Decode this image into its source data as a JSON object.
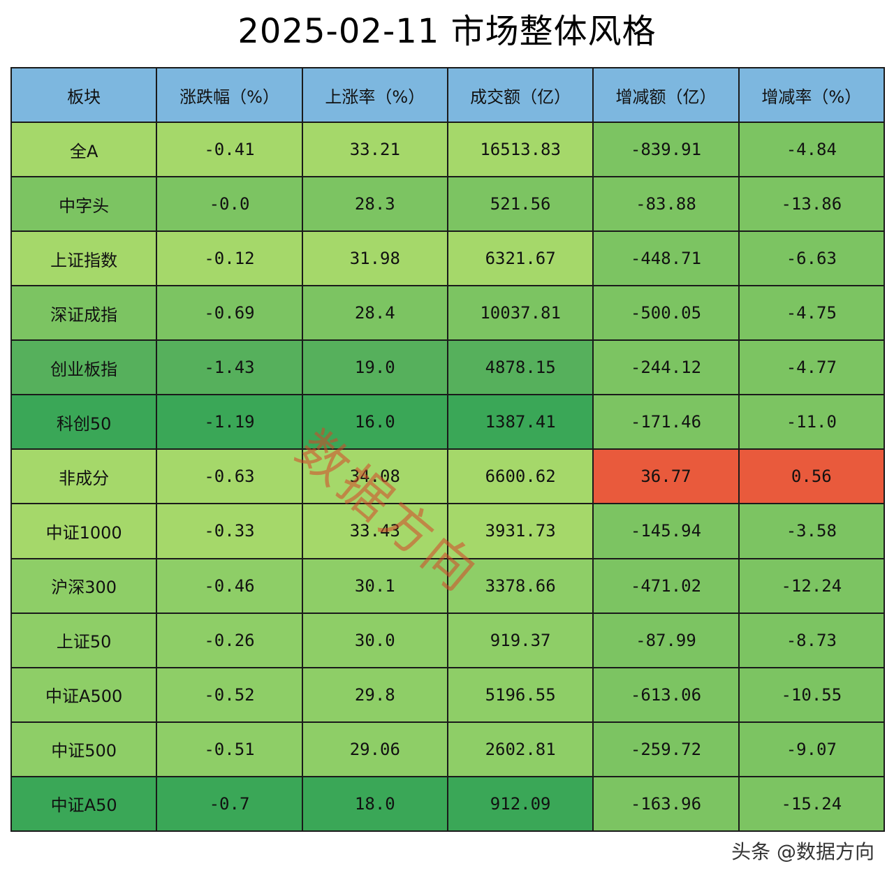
{
  "chart_data": {
    "type": "table",
    "title": "2025-02-11 市场整体风格",
    "columns": [
      "板块",
      "涨跌幅（%）",
      "上涨率（%）",
      "成交额（亿）",
      "增减额（亿）",
      "增减率（%）"
    ],
    "rows": [
      [
        "全A",
        "-0.41",
        "33.21",
        "16513.83",
        "-839.91",
        "-4.84"
      ],
      [
        "中字头",
        "-0.0",
        "28.3",
        "521.56",
        "-83.88",
        "-13.86"
      ],
      [
        "上证指数",
        "-0.12",
        "31.98",
        "6321.67",
        "-448.71",
        "-6.63"
      ],
      [
        "深证成指",
        "-0.69",
        "28.4",
        "10037.81",
        "-500.05",
        "-4.75"
      ],
      [
        "创业板指",
        "-1.43",
        "19.0",
        "4878.15",
        "-244.12",
        "-4.77"
      ],
      [
        "科创50",
        "-1.19",
        "16.0",
        "1387.41",
        "-171.46",
        "-11.0"
      ],
      [
        "非成分",
        "-0.63",
        "34.08",
        "6600.62",
        "36.77",
        "0.56"
      ],
      [
        "中证1000",
        "-0.33",
        "33.43",
        "3931.73",
        "-145.94",
        "-3.58"
      ],
      [
        "沪深300",
        "-0.46",
        "30.1",
        "3378.66",
        "-471.02",
        "-12.24"
      ],
      [
        "上证50",
        "-0.26",
        "30.0",
        "919.37",
        "-87.99",
        "-8.73"
      ],
      [
        "中证A500",
        "-0.52",
        "29.8",
        "5196.55",
        "-613.06",
        "-10.55"
      ],
      [
        "中证500",
        "-0.51",
        "29.06",
        "2602.81",
        "-259.72",
        "-9.07"
      ],
      [
        "中证A50",
        "-0.7",
        "18.0",
        "912.09",
        "-163.96",
        "-15.24"
      ]
    ],
    "cell_colors": [
      [
        "#a5d86a",
        "#a5d86a",
        "#a5d86a",
        "#a5d86a",
        "#7cc462",
        "#7cc462"
      ],
      [
        "#7cc462",
        "#7cc462",
        "#7cc462",
        "#7cc462",
        "#7cc462",
        "#7cc462"
      ],
      [
        "#a5d86a",
        "#a5d86a",
        "#a5d86a",
        "#a5d86a",
        "#7cc462",
        "#7cc462"
      ],
      [
        "#7cc462",
        "#7cc462",
        "#7cc462",
        "#7cc462",
        "#7cc462",
        "#7cc462"
      ],
      [
        "#56b05c",
        "#56b05c",
        "#56b05c",
        "#56b05c",
        "#7cc462",
        "#7cc462"
      ],
      [
        "#3aa757",
        "#3aa757",
        "#3aa757",
        "#3aa757",
        "#7cc462",
        "#7cc462"
      ],
      [
        "#a5d86a",
        "#a5d86a",
        "#a5d86a",
        "#a5d86a",
        "#e95a3c",
        "#e95a3c"
      ],
      [
        "#a5d86a",
        "#a5d86a",
        "#a5d86a",
        "#a5d86a",
        "#7cc462",
        "#7cc462"
      ],
      [
        "#8ece67",
        "#8ece67",
        "#8ece67",
        "#8ece67",
        "#7cc462",
        "#7cc462"
      ],
      [
        "#8ece67",
        "#8ece67",
        "#8ece67",
        "#8ece67",
        "#7cc462",
        "#7cc462"
      ],
      [
        "#8ece67",
        "#8ece67",
        "#8ece67",
        "#8ece67",
        "#7cc462",
        "#7cc462"
      ],
      [
        "#8ece67",
        "#8ece67",
        "#8ece67",
        "#8ece67",
        "#7cc462",
        "#7cc462"
      ],
      [
        "#3aa757",
        "#3aa757",
        "#3aa757",
        "#3aa757",
        "#7cc462",
        "#7cc462"
      ]
    ],
    "header_color": "#7db7df"
  },
  "watermark": "数据方向",
  "footer": "头条 @数据方向"
}
